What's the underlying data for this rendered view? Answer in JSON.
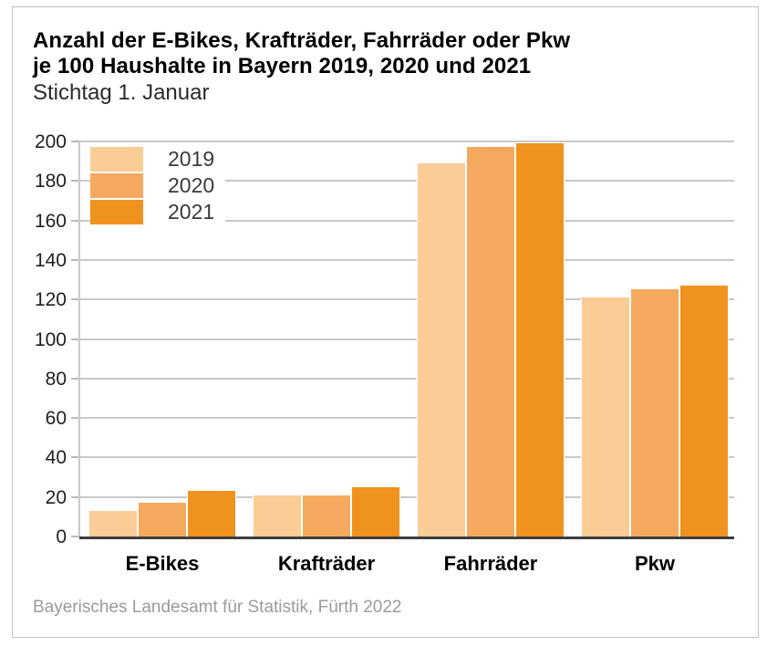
{
  "header": {
    "title_line1": "Anzahl der E-Bikes, Krafträder, Fahrräder oder Pkw",
    "title_line2": "je 100 Haushalte in Bayern 2019, 2020 und 2021",
    "subtitle": "Stichtag 1. Januar"
  },
  "footer": {
    "source": "Bayerisches Landesamt für Statistik, Fürth 2022"
  },
  "chart_data": {
    "type": "bar",
    "title": "Anzahl der E-Bikes, Krafträder, Fahrräder oder Pkw je 100 Haushalte in Bayern 2019, 2020 und 2021",
    "subtitle": "Stichtag 1. Januar",
    "categories": [
      "E-Bikes",
      "Krafträder",
      "Fahrräder",
      "Pkw"
    ],
    "series": [
      {
        "name": "2019",
        "color": "#FACC96",
        "values": [
          13,
          21,
          189,
          121
        ]
      },
      {
        "name": "2020",
        "color": "#F5A95F",
        "values": [
          17,
          21,
          197,
          125
        ]
      },
      {
        "name": "2021",
        "color": "#F0921E",
        "values": [
          23,
          25,
          199,
          127
        ]
      }
    ],
    "ylabel": "",
    "xlabel": "",
    "ylim": [
      0,
      200
    ],
    "yticks": [
      0,
      20,
      40,
      60,
      80,
      100,
      120,
      140,
      160,
      180,
      200
    ],
    "grid": true,
    "legend_position": "top-left",
    "source": "Bayerisches Landesamt für Statistik, Fürth 2022"
  },
  "style": {
    "series_colors": {
      "2019": "#FACC96",
      "2020": "#F5A95F",
      "2021": "#F0921E"
    },
    "gridline_color": "#c9c9c9",
    "baseline_color": "#3d3d3d",
    "frame_border_color": "#c3c3c3",
    "source_text_color": "#9b9b9b"
  }
}
